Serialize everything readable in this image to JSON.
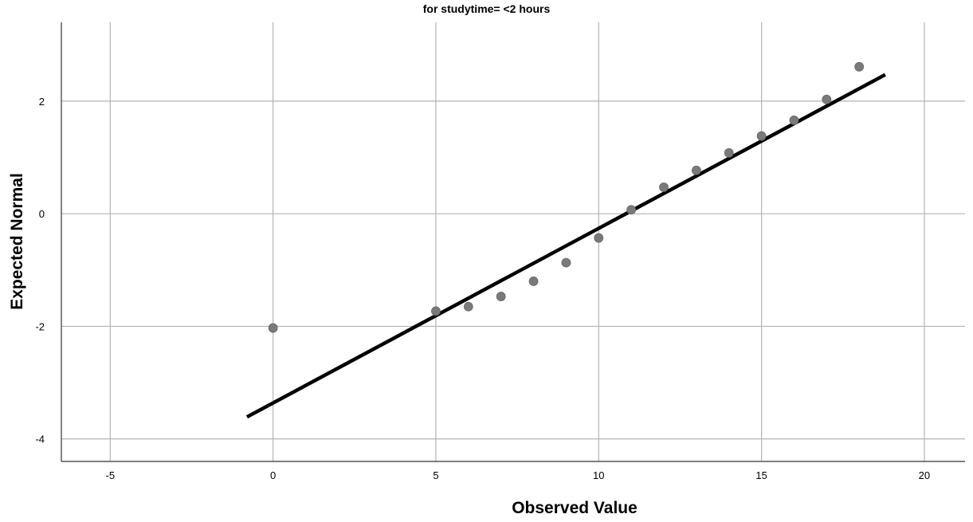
{
  "chart_data": {
    "type": "scatter",
    "title": "for studytime= <2 hours",
    "xlabel": "Observed Value",
    "ylabel": "Expected Normal",
    "xlim": [
      -6.5,
      21.25
    ],
    "ylim": [
      -4.4,
      3.4
    ],
    "xticks": [
      -5,
      0,
      5,
      10,
      15,
      20
    ],
    "yticks": [
      -4,
      -2,
      0,
      2
    ],
    "xtick_labels": [
      "-5",
      "0",
      "5",
      "10",
      "15",
      "20"
    ],
    "ytick_labels": [
      "-4",
      "-2",
      "0",
      "2"
    ],
    "grid": true,
    "points": [
      {
        "x": 0,
        "y": -2.03
      },
      {
        "x": 5,
        "y": -1.73
      },
      {
        "x": 6,
        "y": -1.65
      },
      {
        "x": 7,
        "y": -1.47
      },
      {
        "x": 8,
        "y": -1.2
      },
      {
        "x": 9,
        "y": -0.87
      },
      {
        "x": 10,
        "y": -0.43
      },
      {
        "x": 11,
        "y": 0.07
      },
      {
        "x": 12,
        "y": 0.47
      },
      {
        "x": 13,
        "y": 0.77
      },
      {
        "x": 14,
        "y": 1.08
      },
      {
        "x": 15,
        "y": 1.38
      },
      {
        "x": 16,
        "y": 1.66
      },
      {
        "x": 17,
        "y": 2.03
      },
      {
        "x": 18,
        "y": 2.61
      }
    ],
    "reference_line": {
      "x1": -0.8,
      "y1": -3.61,
      "x2": 18.8,
      "y2": 2.47
    },
    "colors": {
      "point": "#7a7a7a",
      "line": "#000000",
      "grid": "#b4b4b4",
      "axis": "#333333"
    }
  }
}
